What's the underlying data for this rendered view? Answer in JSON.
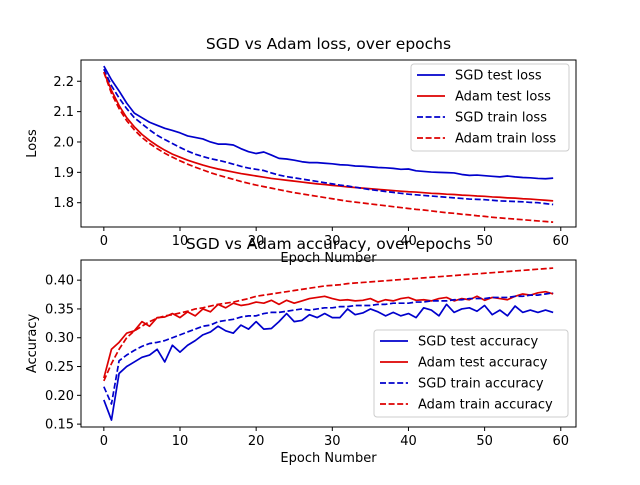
{
  "chart_data": [
    {
      "type": "line",
      "title": "SGD vs Adam loss, over epochs",
      "xlabel": "Epoch Number",
      "ylabel": "Loss",
      "xlim": [
        -3,
        62
      ],
      "ylim": [
        1.72,
        2.27
      ],
      "xticks": [
        0,
        10,
        20,
        30,
        40,
        50,
        60
      ],
      "yticks": [
        1.8,
        1.9,
        2.0,
        2.1,
        2.2
      ],
      "ytick_labels": [
        "1.8",
        "1.9",
        "2.0",
        "2.1",
        "2.2"
      ],
      "legend_position": "top-right",
      "grid": false,
      "series": [
        {
          "name": "SGD test loss",
          "color": "#0000cc",
          "style": "solid",
          "values": [
            2.25,
            2.205,
            2.168,
            2.128,
            2.095,
            2.08,
            2.065,
            2.055,
            2.045,
            2.038,
            2.03,
            2.02,
            2.015,
            2.01,
            2.0,
            1.993,
            1.993,
            1.99,
            1.978,
            1.968,
            1.962,
            1.967,
            1.957,
            1.946,
            1.944,
            1.94,
            1.935,
            1.932,
            1.932,
            1.93,
            1.928,
            1.925,
            1.924,
            1.921,
            1.92,
            1.918,
            1.916,
            1.915,
            1.913,
            1.91,
            1.911,
            1.905,
            1.903,
            1.901,
            1.9,
            1.899,
            1.898,
            1.893,
            1.89,
            1.891,
            1.889,
            1.887,
            1.885,
            1.888,
            1.885,
            1.883,
            1.882,
            1.88,
            1.879,
            1.881
          ]
        },
        {
          "name": "Adam test loss",
          "color": "#dd0000",
          "style": "solid",
          "values": [
            2.23,
            2.17,
            2.12,
            2.08,
            2.05,
            2.025,
            2.005,
            1.988,
            1.973,
            1.96,
            1.95,
            1.94,
            1.932,
            1.924,
            1.917,
            1.911,
            1.906,
            1.901,
            1.896,
            1.892,
            1.888,
            1.884,
            1.88,
            1.877,
            1.874,
            1.871,
            1.868,
            1.865,
            1.862,
            1.86,
            1.857,
            1.855,
            1.852,
            1.85,
            1.848,
            1.846,
            1.844,
            1.842,
            1.84,
            1.838,
            1.836,
            1.835,
            1.833,
            1.831,
            1.83,
            1.828,
            1.827,
            1.825,
            1.824,
            1.822,
            1.821,
            1.819,
            1.818,
            1.816,
            1.815,
            1.813,
            1.812,
            1.81,
            1.808,
            1.806
          ]
        },
        {
          "name": "SGD train loss",
          "color": "#0000cc",
          "style": "dashed",
          "values": [
            2.24,
            2.185,
            2.145,
            2.11,
            2.08,
            2.06,
            2.04,
            2.022,
            2.008,
            1.995,
            1.982,
            1.97,
            1.96,
            1.952,
            1.945,
            1.94,
            1.934,
            1.927,
            1.92,
            1.914,
            1.91,
            1.906,
            1.898,
            1.891,
            1.886,
            1.882,
            1.878,
            1.874,
            1.87,
            1.866,
            1.862,
            1.858,
            1.855,
            1.851,
            1.847,
            1.843,
            1.84,
            1.837,
            1.834,
            1.831,
            1.828,
            1.826,
            1.824,
            1.822,
            1.82,
            1.818,
            1.816,
            1.814,
            1.812,
            1.811,
            1.81,
            1.808,
            1.806,
            1.805,
            1.804,
            1.803,
            1.801,
            1.8,
            1.797,
            1.794
          ]
        },
        {
          "name": "Adam train loss",
          "color": "#dd0000",
          "style": "dashed",
          "values": [
            2.23,
            2.16,
            2.11,
            2.07,
            2.04,
            2.015,
            1.995,
            1.978,
            1.963,
            1.95,
            1.938,
            1.927,
            1.917,
            1.908,
            1.899,
            1.891,
            1.884,
            1.877,
            1.87,
            1.864,
            1.858,
            1.853,
            1.848,
            1.843,
            1.838,
            1.833,
            1.829,
            1.825,
            1.821,
            1.817,
            1.813,
            1.809,
            1.805,
            1.802,
            1.799,
            1.796,
            1.793,
            1.79,
            1.787,
            1.784,
            1.781,
            1.778,
            1.776,
            1.773,
            1.77,
            1.767,
            1.765,
            1.762,
            1.76,
            1.757,
            1.755,
            1.752,
            1.75,
            1.748,
            1.746,
            1.744,
            1.742,
            1.74,
            1.738,
            1.736
          ]
        }
      ]
    },
    {
      "type": "line",
      "title": "SGD vs Adam accuracy, over epochs",
      "xlabel": "Epoch Number",
      "ylabel": "Accuracy",
      "xlim": [
        -3,
        62
      ],
      "ylim": [
        0.145,
        0.435
      ],
      "xticks": [
        0,
        10,
        20,
        30,
        40,
        50,
        60
      ],
      "yticks": [
        0.15,
        0.2,
        0.25,
        0.3,
        0.35,
        0.4
      ],
      "ytick_labels": [
        "0.15",
        "0.20",
        "0.25",
        "0.30",
        "0.35",
        "0.40"
      ],
      "legend_position": "lower-right",
      "grid": false,
      "series": [
        {
          "name": "SGD test accuracy",
          "color": "#0000cc",
          "style": "solid",
          "values": [
            0.192,
            0.157,
            0.238,
            0.25,
            0.258,
            0.266,
            0.27,
            0.28,
            0.258,
            0.287,
            0.275,
            0.287,
            0.295,
            0.305,
            0.31,
            0.32,
            0.312,
            0.308,
            0.322,
            0.315,
            0.328,
            0.315,
            0.316,
            0.328,
            0.342,
            0.328,
            0.33,
            0.34,
            0.335,
            0.342,
            0.335,
            0.335,
            0.35,
            0.34,
            0.343,
            0.35,
            0.345,
            0.338,
            0.344,
            0.338,
            0.342,
            0.335,
            0.352,
            0.348,
            0.338,
            0.358,
            0.344,
            0.35,
            0.352,
            0.346,
            0.356,
            0.34,
            0.348,
            0.338,
            0.355,
            0.344,
            0.348,
            0.344,
            0.348,
            0.344
          ]
        },
        {
          "name": "Adam test accuracy",
          "color": "#dd0000",
          "style": "solid",
          "values": [
            0.23,
            0.28,
            0.292,
            0.308,
            0.312,
            0.328,
            0.32,
            0.335,
            0.336,
            0.342,
            0.335,
            0.345,
            0.338,
            0.35,
            0.345,
            0.358,
            0.352,
            0.36,
            0.356,
            0.358,
            0.362,
            0.36,
            0.365,
            0.358,
            0.365,
            0.36,
            0.364,
            0.368,
            0.37,
            0.372,
            0.368,
            0.365,
            0.366,
            0.364,
            0.365,
            0.368,
            0.362,
            0.366,
            0.364,
            0.368,
            0.37,
            0.365,
            0.366,
            0.364,
            0.368,
            0.37,
            0.364,
            0.368,
            0.366,
            0.372,
            0.365,
            0.37,
            0.368,
            0.366,
            0.372,
            0.376,
            0.374,
            0.378,
            0.38,
            0.376
          ]
        },
        {
          "name": "SGD train accuracy",
          "color": "#0000cc",
          "style": "dashed",
          "values": [
            0.215,
            0.185,
            0.26,
            0.27,
            0.278,
            0.285,
            0.29,
            0.292,
            0.295,
            0.3,
            0.305,
            0.31,
            0.315,
            0.32,
            0.322,
            0.328,
            0.33,
            0.332,
            0.336,
            0.338,
            0.338,
            0.342,
            0.344,
            0.344,
            0.346,
            0.348,
            0.35,
            0.348,
            0.35,
            0.352,
            0.352,
            0.354,
            0.354,
            0.356,
            0.356,
            0.356,
            0.358,
            0.358,
            0.36,
            0.36,
            0.36,
            0.362,
            0.362,
            0.364,
            0.364,
            0.364,
            0.366,
            0.366,
            0.368,
            0.368,
            0.368,
            0.37,
            0.37,
            0.37,
            0.372,
            0.372,
            0.374,
            0.374,
            0.376,
            0.378
          ]
        },
        {
          "name": "Adam train accuracy",
          "color": "#dd0000",
          "style": "dashed",
          "values": [
            0.225,
            0.255,
            0.28,
            0.3,
            0.312,
            0.32,
            0.328,
            0.334,
            0.338,
            0.34,
            0.343,
            0.346,
            0.35,
            0.352,
            0.355,
            0.358,
            0.36,
            0.362,
            0.365,
            0.368,
            0.372,
            0.374,
            0.376,
            0.378,
            0.38,
            0.382,
            0.384,
            0.386,
            0.388,
            0.39,
            0.391,
            0.392,
            0.394,
            0.395,
            0.396,
            0.397,
            0.398,
            0.399,
            0.4,
            0.401,
            0.402,
            0.403,
            0.404,
            0.405,
            0.406,
            0.407,
            0.408,
            0.409,
            0.41,
            0.411,
            0.412,
            0.413,
            0.414,
            0.415,
            0.416,
            0.417,
            0.418,
            0.419,
            0.42,
            0.421
          ]
        }
      ]
    }
  ]
}
